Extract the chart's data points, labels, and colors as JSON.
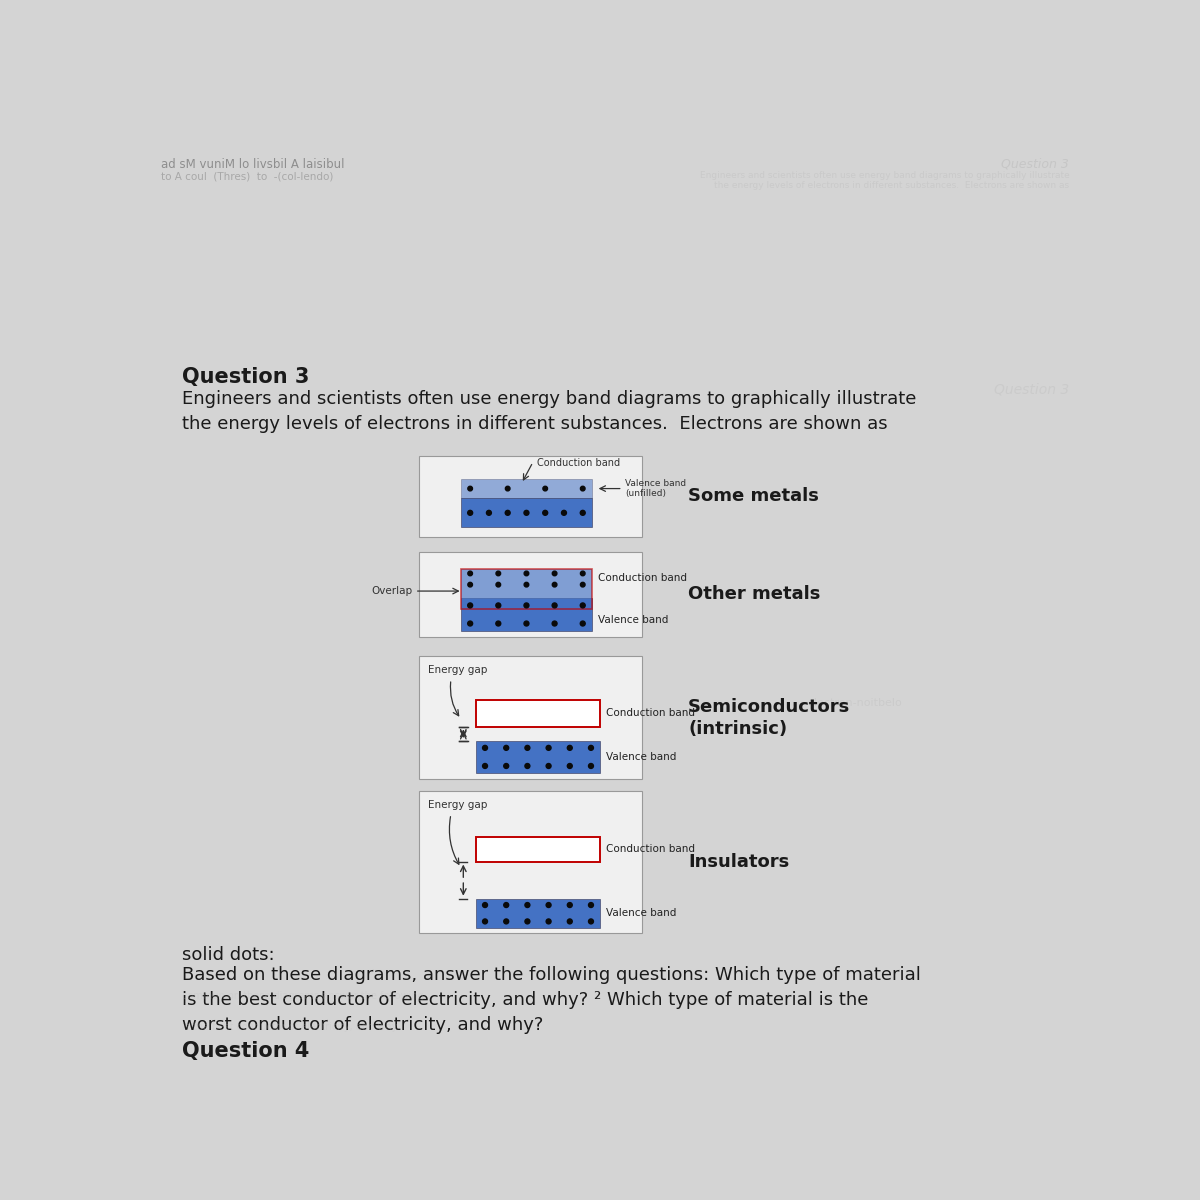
{
  "bg_color": "#d4d4d4",
  "title_text": "Question 3",
  "intro_text": "Engineers and scientists often use energy band diagrams to graphically illustrate\nthe energy levels of electrons in different substances.  Electrons are shown as",
  "footer_bold": "solid dots:",
  "footer_text": "Based on these diagrams, answer the following questions: Which type of material\nis the best conductor of electricity, and why? ² Which type of material is the\nworst conductor of electricity, and why?",
  "question4_text": "Question 4",
  "header_line1": "ad sM vuniM lo livsbil A laisibul",
  "header_line2": "to A coul  (Thres)  to  -(col-lendo)",
  "blue_color": "#4472c4",
  "red_outline": "#c00000",
  "bg_text_color": "#bbbbbb",
  "label_some_metals": "Some metals",
  "label_other_metals": "Other metals",
  "label_semiconductors": "Semiconductors\n(intrinsic)",
  "label_insulators": "Insulators"
}
